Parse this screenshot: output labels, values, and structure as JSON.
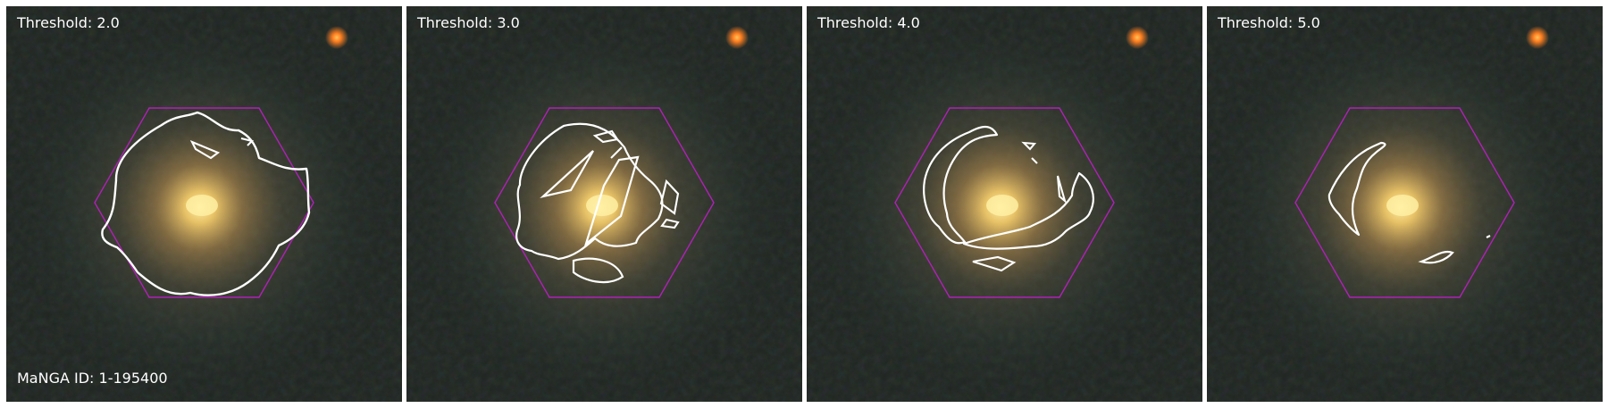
{
  "figure": {
    "manga_id_text": "MaNGA ID: 1-195400",
    "panels": [
      {
        "title": "Threshold: 2.0",
        "threshold": 2.0
      },
      {
        "title": "Threshold: 3.0",
        "threshold": 3.0
      },
      {
        "title": "Threshold: 4.0",
        "threshold": 4.0
      },
      {
        "title": "Threshold: 5.0",
        "threshold": 5.0
      }
    ]
  },
  "colors": {
    "contour": "#ffffff",
    "hexagon": "#b020b8",
    "galaxy_core": "#f6d77a",
    "background": "#1f2520",
    "star": "#ff8a22"
  }
}
